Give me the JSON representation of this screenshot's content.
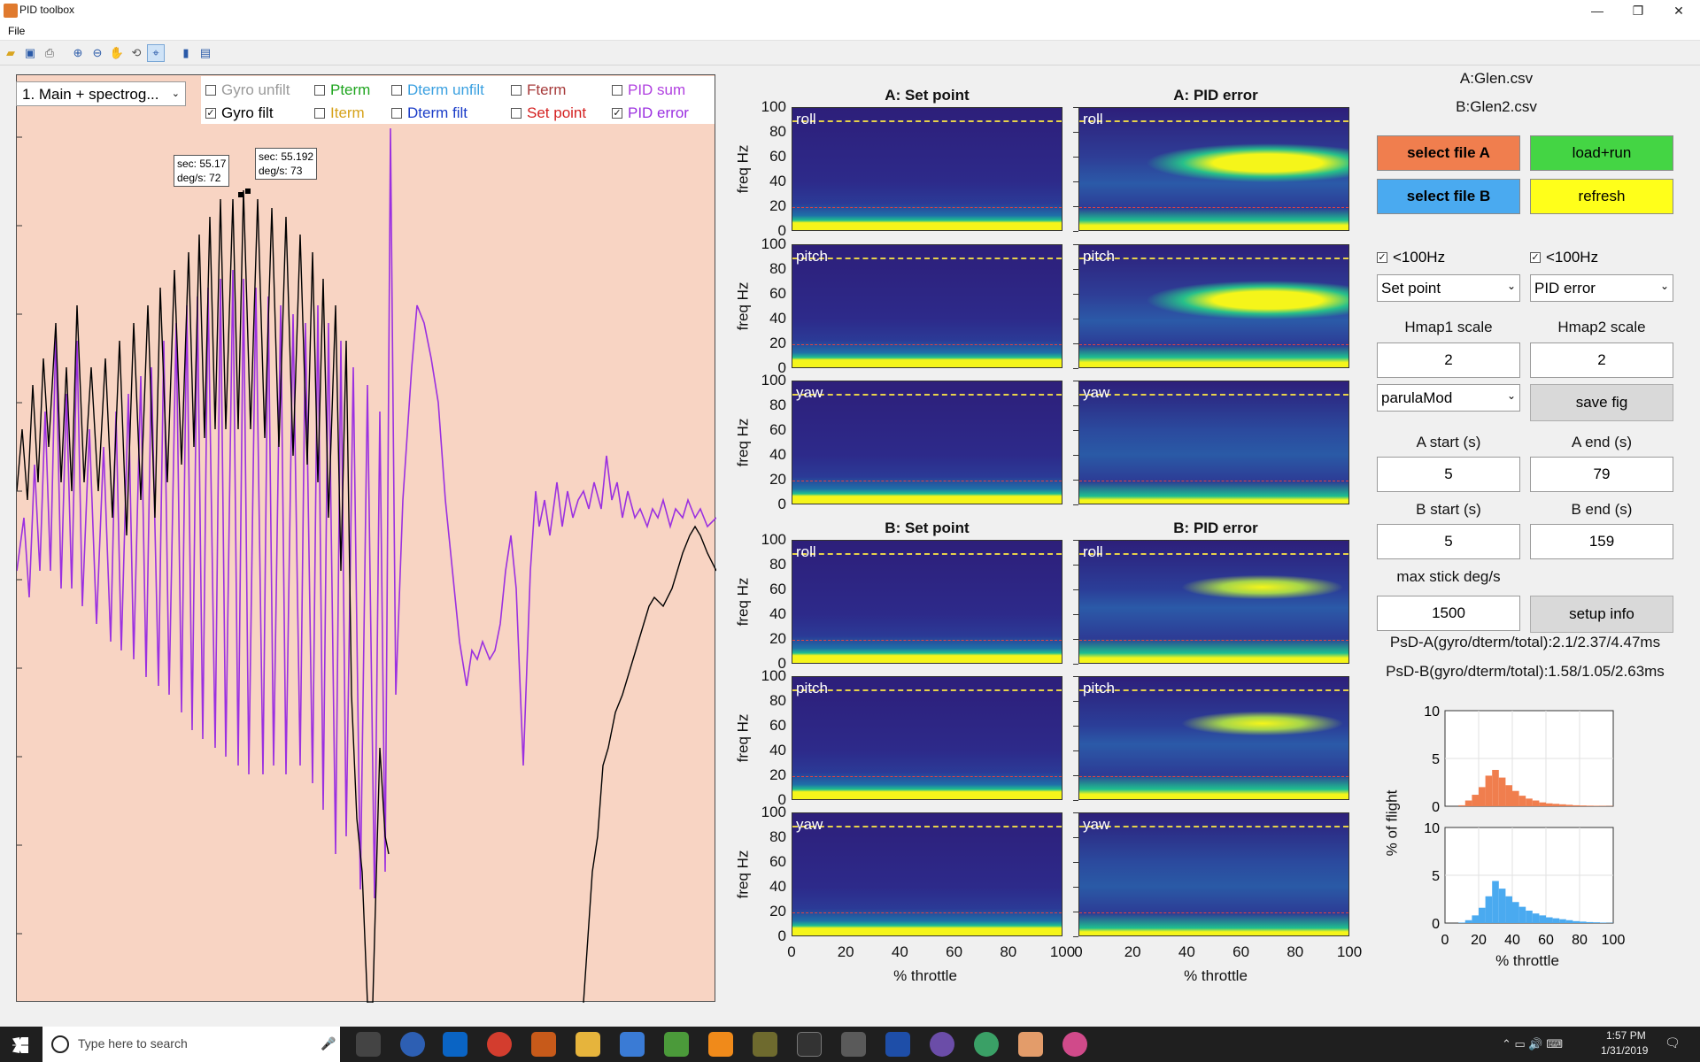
{
  "window": {
    "title": "PID toolbox",
    "minimize": "—",
    "restore": "❐",
    "close": "✕"
  },
  "menu": {
    "file": "File"
  },
  "toolbar": {
    "icons": [
      "open-icon",
      "save-icon",
      "print-icon",
      "zoom-in-icon",
      "zoom-out-icon",
      "pan-icon",
      "rotate-icon",
      "data-cursor-icon",
      "colorbar-icon",
      "legend-icon"
    ]
  },
  "plot": {
    "mode_select": "1. Main + spectrog...",
    "legend": [
      {
        "label": "Gyro unfilt",
        "checked": false,
        "color": "#9a9a9a"
      },
      {
        "label": "Gyro filt",
        "checked": true,
        "color": "#000000"
      },
      {
        "label": "Pterm",
        "checked": false,
        "color": "#1fa51f"
      },
      {
        "label": "Iterm",
        "checked": false,
        "color": "#d6a21a"
      },
      {
        "label": "Dterm unfilt",
        "checked": false,
        "color": "#3aa0e0"
      },
      {
        "label": "Dterm filt",
        "checked": false,
        "color": "#1a3cc8"
      },
      {
        "label": "Fterm",
        "checked": false,
        "color": "#a63a3a"
      },
      {
        "label": "Set point",
        "checked": false,
        "color": "#d42020"
      },
      {
        "label": "PID sum",
        "checked": false,
        "color": "#b040e0"
      },
      {
        "label": "PID error",
        "checked": true,
        "color": "#9b30e0"
      }
    ],
    "tooltips": [
      {
        "line1": "sec: 55.17",
        "line2": "deg/s: 72"
      },
      {
        "line1": "sec: 55.192",
        "line2": "deg/s: 73"
      }
    ]
  },
  "spectrograms": {
    "titles": {
      "a_setpoint": "A: Set point",
      "a_piderror": "A: PID error",
      "b_setpoint": "B: Set point",
      "b_piderror": "B: PID error"
    },
    "row_labels": [
      "roll",
      "pitch",
      "yaw"
    ],
    "y_ticks": [
      "100",
      "80",
      "60",
      "40",
      "20",
      "0"
    ],
    "y_label": "freq Hz",
    "x_ticks": [
      "0",
      "20",
      "40",
      "60",
      "80",
      "100"
    ],
    "x_label": "% throttle"
  },
  "controls": {
    "file_a": "A:Glen.csv",
    "file_b": "B:Glen2.csv",
    "select_a": "select file A",
    "load_run": "load+run",
    "select_b": "select file B",
    "refresh": "refresh",
    "lt100_a": "<100Hz",
    "lt100_b": "<100Hz",
    "dd_left": "Set point",
    "dd_right": "PID error",
    "hmap1_label": "Hmap1 scale",
    "hmap2_label": "Hmap2 scale",
    "hmap1_value": "2",
    "hmap2_value": "2",
    "colormap": "parulaMod",
    "save_fig": "save fig",
    "a_start_label": "A start (s)",
    "a_end_label": "A end (s)",
    "a_start": "5",
    "a_end": "79",
    "b_start_label": "B start (s)",
    "b_end_label": "B end (s)",
    "b_start": "5",
    "b_end": "159",
    "max_stick_label": "max stick deg/s",
    "max_stick": "1500",
    "setup_info": "setup info",
    "psd_a": "PsD-A(gyro/dterm/total):2.1/2.37/4.47ms",
    "psd_b": "PsD-B(gyro/dterm/total):1.58/1.05/2.63ms",
    "colors": {
      "select_a": "#f07e4e",
      "load_run": "#44d544",
      "select_b": "#4aaaf0",
      "refresh": "#ffff1a"
    }
  },
  "histogram": {
    "y_label": "% of flight",
    "x_label": "% throttle",
    "y_ticks_top": [
      "10",
      "5",
      "0"
    ],
    "y_ticks_bottom": [
      "10",
      "5",
      "0"
    ],
    "x_ticks": [
      "0",
      "20",
      "40",
      "60",
      "80",
      "100"
    ]
  },
  "chart_data": [
    {
      "type": "line",
      "title": "",
      "xlabel": "sec",
      "ylabel": "deg/s",
      "series": [
        {
          "name": "Gyro filt",
          "color": "#000000"
        },
        {
          "name": "PID error",
          "color": "#9b30e0"
        }
      ],
      "annotations": [
        {
          "x": 55.17,
          "y": 72
        },
        {
          "x": 55.192,
          "y": 73
        }
      ]
    },
    {
      "type": "bar",
      "title": "",
      "xlabel": "% throttle",
      "ylabel": "% of flight",
      "ylim": [
        0,
        10
      ],
      "xlim": [
        0,
        100
      ],
      "series": [
        {
          "name": "A",
          "color": "#f07e4e",
          "x": [
            10,
            14,
            18,
            22,
            26,
            30,
            34,
            38,
            42,
            46,
            50,
            54,
            58,
            62,
            66,
            70,
            74,
            78,
            82,
            86,
            90,
            94,
            98
          ],
          "values": [
            0.1,
            0.6,
            1.2,
            2.0,
            3.2,
            3.8,
            3.0,
            2.2,
            1.6,
            1.1,
            0.8,
            0.6,
            0.4,
            0.3,
            0.25,
            0.2,
            0.15,
            0.1,
            0.08,
            0.06,
            0.05,
            0.04,
            0.03
          ]
        },
        {
          "name": "B",
          "color": "#4aaaf0",
          "x": [
            10,
            14,
            18,
            22,
            26,
            30,
            34,
            38,
            42,
            46,
            50,
            54,
            58,
            62,
            66,
            70,
            74,
            78,
            82,
            86,
            90,
            94,
            98
          ],
          "values": [
            0.05,
            0.3,
            0.8,
            1.6,
            2.8,
            4.4,
            3.6,
            2.8,
            2.2,
            1.7,
            1.3,
            1.0,
            0.8,
            0.6,
            0.5,
            0.4,
            0.3,
            0.2,
            0.15,
            0.1,
            0.08,
            0.05,
            0.03
          ]
        }
      ]
    }
  ]
}
